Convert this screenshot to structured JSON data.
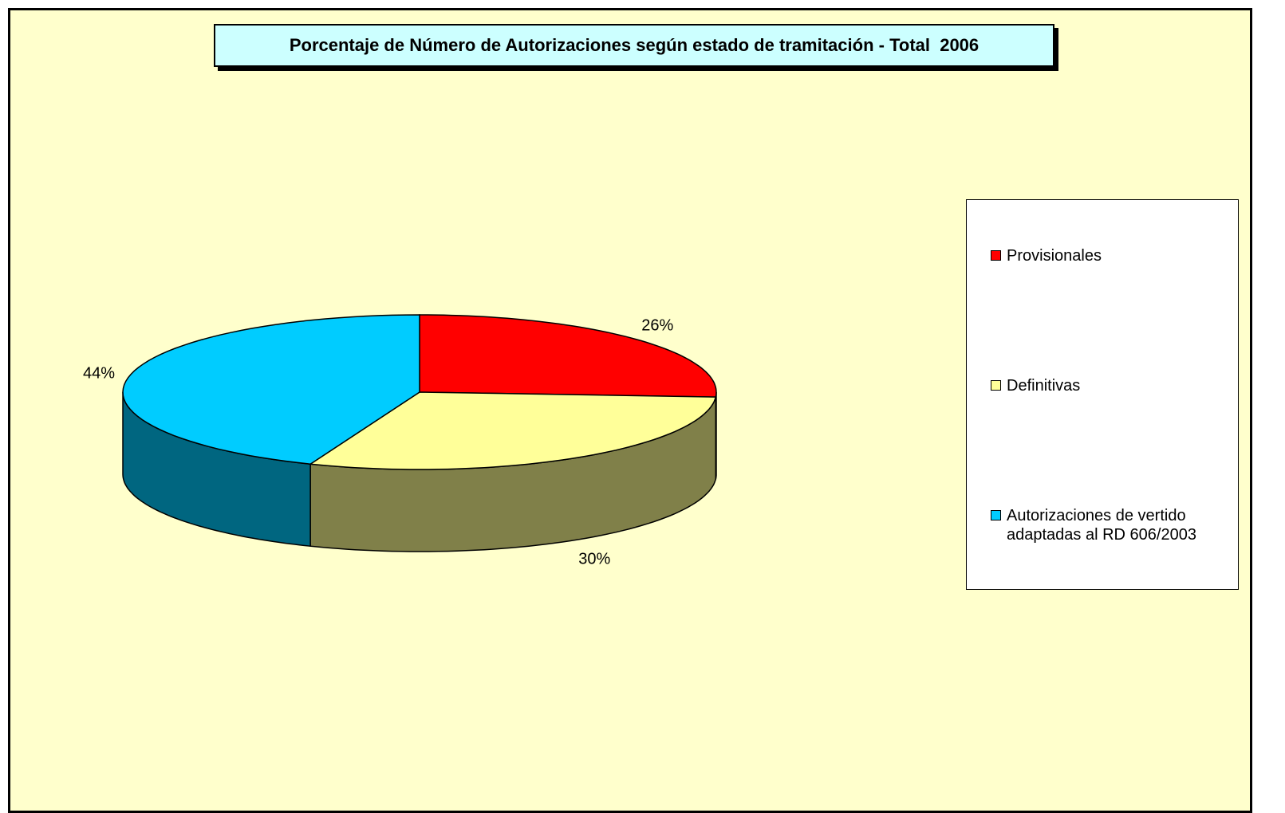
{
  "chart_data": {
    "type": "pie3d",
    "title": "Porcentaje de Número de Autorizaciones según estado de tramitación - Total  2006",
    "categories": [
      "Provisionales",
      "Definitivas",
      "Autorizaciones de vertido adaptadas al RD 606/2003"
    ],
    "values": [
      26,
      30,
      44
    ],
    "value_labels": [
      "26%",
      "30%",
      "44%"
    ],
    "colors": [
      "#FF0000",
      "#FFFF99",
      "#00CCFF"
    ],
    "side_colors": [
      "#800000",
      "#808049",
      "#006680"
    ],
    "legend": "right"
  }
}
